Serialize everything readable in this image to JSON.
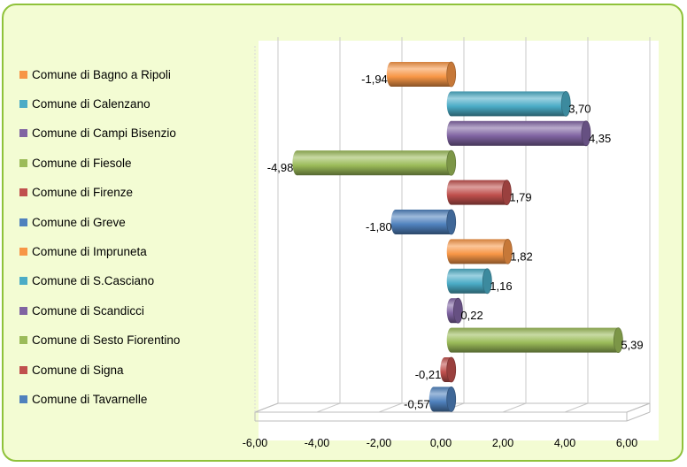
{
  "chart_data": {
    "type": "bar",
    "orientation": "horizontal",
    "style": "3d-cylinder",
    "categories": [
      "Comune di Bagno a Ripoli",
      "Comune di Calenzano",
      "Comune di Campi Bisenzio",
      "Comune di Fiesole",
      "Comune di Firenze",
      "Comune di Greve",
      "Comune di Impruneta",
      "Comune di S.Casciano",
      "Comune di Scandicci",
      "Comune di Sesto Fiorentino",
      "Comune di Signa",
      "Comune di Tavarnelle"
    ],
    "values": [
      -1.94,
      3.7,
      4.35,
      -4.98,
      1.79,
      -1.8,
      1.82,
      1.16,
      0.22,
      5.39,
      -0.21,
      -0.57
    ],
    "data_labels": [
      "-1,94",
      "3,70",
      "4,35",
      "-4,98",
      "1,79",
      "-1,80",
      "1,82",
      "1,16",
      "0,22",
      "5,39",
      "-0,21",
      "-0,57"
    ],
    "colors": [
      "#f79646",
      "#4bacc6",
      "#8064a2",
      "#9bbb59",
      "#c0504d",
      "#4f81bd",
      "#f79646",
      "#4bacc6",
      "#8064a2",
      "#9bbb59",
      "#c0504d",
      "#4f81bd"
    ],
    "xlim": [
      -6,
      6
    ],
    "x_ticks": [
      "-6,00",
      "-4,00",
      "-2,00",
      "0,00",
      "2,00",
      "4,00",
      "6,00"
    ],
    "x_tick_values": [
      -6,
      -4,
      -2,
      0,
      2,
      4,
      6
    ],
    "grid": true,
    "legend_position": "left",
    "title": "",
    "xlabel": "",
    "ylabel": ""
  }
}
